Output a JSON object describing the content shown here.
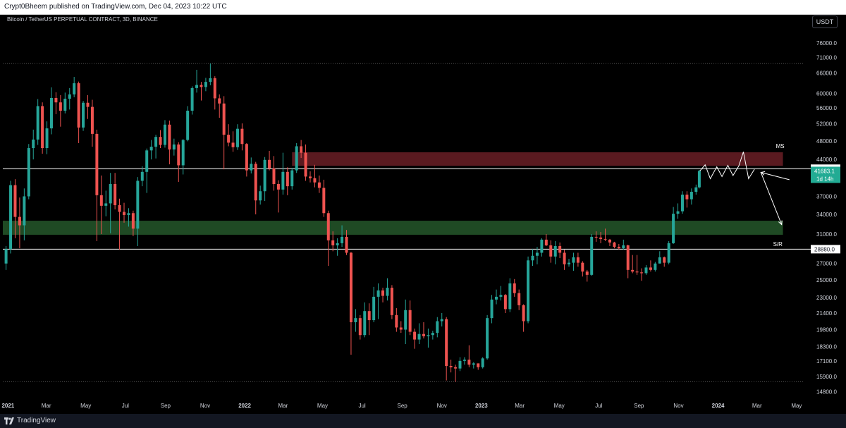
{
  "header": {
    "publisher_text": "Crypt0Bheem published on TradingView.com, Dec 04, 2023 10:22 UTC"
  },
  "chart_title": "Bitcoin / TetherUS PERPETUAL CONTRACT, 3D, BINANCE",
  "currency_button": "USDT",
  "footer": {
    "logo_text": "TradingView"
  },
  "colors": {
    "background": "#000000",
    "up_candle": "#26a69a",
    "down_candle": "#ef5350",
    "resistance_zone": "#5a1a20",
    "support_zone": "#1f4a24",
    "price_label_bg": "#22ab94",
    "level_line": "#ffffff",
    "axis_text": "#d1d4dc"
  },
  "chart_data": {
    "type": "candlestick",
    "title": "Bitcoin / TetherUS PERPETUAL CONTRACT, 3D, BINANCE",
    "y_scale": "log",
    "y_ticks": [
      76000.0,
      71000.0,
      66000.0,
      60000.0,
      56000.0,
      52000.0,
      48000.0,
      44000.0,
      37000.0,
      34000.0,
      31000.0,
      27000.0,
      25000.0,
      23000.0,
      21400.0,
      19800.0,
      18300.0,
      17100.0,
      15900.0,
      14800.0
    ],
    "x_ticks": [
      "2021",
      "Mar",
      "May",
      "Jul",
      "Sep",
      "Nov",
      "2022",
      "Mar",
      "May",
      "Jul",
      "Sep",
      "Nov",
      "2023",
      "Mar",
      "May",
      "Jul",
      "Sep",
      "Nov",
      "2024",
      "Mar",
      "May"
    ],
    "x_tick_dates": [
      "2021-01-01",
      "2021-03-01",
      "2021-05-01",
      "2021-07-01",
      "2021-09-01",
      "2021-11-01",
      "2022-01-01",
      "2022-03-01",
      "2022-05-01",
      "2022-07-01",
      "2022-09-01",
      "2022-11-01",
      "2023-01-01",
      "2023-03-01",
      "2023-05-01",
      "2023-07-01",
      "2023-09-01",
      "2023-11-01",
      "2024-01-01",
      "2024-03-01",
      "2024-05-01"
    ],
    "x_range": [
      "2020-12-24",
      "2024-05-12"
    ],
    "y_range": [
      14200,
      87000
    ],
    "dotted_levels": [
      69000,
      15500
    ],
    "horizontal_levels": [
      {
        "value": 42125.0,
        "label": "42125.0"
      },
      {
        "value": 28880.0,
        "label": "28880.0"
      }
    ],
    "current_price": {
      "value": 41683.1,
      "label": "41683.1",
      "countdown": "1d 14h"
    },
    "zones": [
      {
        "name": "MS",
        "start": "2022-03-15",
        "end": "2024-04-10",
        "top": 45500,
        "bottom": 42700,
        "label": "MS"
      },
      {
        "name": "S/R",
        "start": "2020-12-24",
        "end": "2024-04-10",
        "top": 33000,
        "bottom": 30900,
        "label": "S/R"
      }
    ],
    "projection_zigzag": [
      [
        "2023-12-04",
        41700
      ],
      [
        "2023-12-12",
        42900
      ],
      [
        "2023-12-20",
        40200
      ],
      [
        "2023-12-30",
        42500
      ],
      [
        "2024-01-07",
        40600
      ],
      [
        "2024-01-16",
        42800
      ],
      [
        "2024-01-24",
        40800
      ],
      [
        "2024-02-02",
        42700
      ],
      [
        "2024-02-09",
        45600
      ],
      [
        "2024-02-17",
        40200
      ],
      [
        "2024-02-26",
        42000
      ]
    ],
    "projection_arrows": [
      {
        "from": [
          "2024-04-20",
          40000
        ],
        "to": [
          "2024-03-07",
          41400
        ]
      },
      {
        "from": [
          "2024-03-07",
          41400
        ],
        "to": [
          "2024-04-08",
          32400
        ]
      }
    ],
    "candles": [
      [
        "2020-12-29",
        27000,
        29300,
        26200,
        28900
      ],
      [
        "2021-01-05",
        28900,
        39800,
        28300,
        39000
      ],
      [
        "2021-01-12",
        39000,
        40100,
        30400,
        33600
      ],
      [
        "2021-01-19",
        33600,
        36800,
        29000,
        32300
      ],
      [
        "2021-01-26",
        32300,
        38400,
        30100,
        37000
      ],
      [
        "2021-02-02",
        37000,
        47300,
        36500,
        46400
      ],
      [
        "2021-02-09",
        46400,
        50600,
        44000,
        48300
      ],
      [
        "2021-02-16",
        48300,
        58400,
        47100,
        56500
      ],
      [
        "2021-02-23",
        56500,
        57500,
        45200,
        46400
      ],
      [
        "2021-03-02",
        46400,
        52600,
        45100,
        50900
      ],
      [
        "2021-03-09",
        50900,
        61700,
        49500,
        58700
      ],
      [
        "2021-03-16",
        58700,
        60300,
        54400,
        57500
      ],
      [
        "2021-03-23",
        57500,
        59500,
        51300,
        55300
      ],
      [
        "2021-03-30",
        55300,
        60200,
        54600,
        58500
      ],
      [
        "2021-04-06",
        58500,
        61500,
        55600,
        59700
      ],
      [
        "2021-04-13",
        59700,
        64800,
        58900,
        62900
      ],
      [
        "2021-04-20",
        62900,
        63400,
        47500,
        51100
      ],
      [
        "2021-04-27",
        51100,
        57900,
        50300,
        57400
      ],
      [
        "2021-05-04",
        57400,
        59500,
        53200,
        56300
      ],
      [
        "2021-05-11",
        56300,
        58200,
        46700,
        49600
      ],
      [
        "2021-05-18",
        49600,
        50600,
        30000,
        37200
      ],
      [
        "2021-05-25",
        37200,
        40800,
        31000,
        35400
      ],
      [
        "2021-06-01",
        35400,
        38000,
        33700,
        35800
      ],
      [
        "2021-06-08",
        35800,
        41300,
        31100,
        39200
      ],
      [
        "2021-06-15",
        39200,
        41300,
        34800,
        35500
      ],
      [
        "2021-06-22",
        35500,
        36600,
        28800,
        34400
      ],
      [
        "2021-06-29",
        34400,
        35900,
        32700,
        33900
      ],
      [
        "2021-07-06",
        33900,
        35000,
        32100,
        34200
      ],
      [
        "2021-07-13",
        34200,
        34600,
        30700,
        31800
      ],
      [
        "2021-07-20",
        31800,
        40500,
        29300,
        39800
      ],
      [
        "2021-07-27",
        39800,
        42600,
        38800,
        41500
      ],
      [
        "2021-08-03",
        41500,
        46300,
        37600,
        45900
      ],
      [
        "2021-08-10",
        45900,
        48200,
        44000,
        46700
      ],
      [
        "2021-08-17",
        46700,
        49400,
        44200,
        48900
      ],
      [
        "2021-08-24",
        48900,
        50500,
        46400,
        47100
      ],
      [
        "2021-08-31",
        47100,
        52900,
        46500,
        51800
      ],
      [
        "2021-09-07",
        51800,
        52800,
        43000,
        46100
      ],
      [
        "2021-09-14",
        46100,
        48500,
        44800,
        47200
      ],
      [
        "2021-09-21",
        47200,
        47700,
        39600,
        42800
      ],
      [
        "2021-09-28",
        42800,
        48400,
        41000,
        48200
      ],
      [
        "2021-10-05",
        48200,
        56500,
        47900,
        55300
      ],
      [
        "2021-10-12",
        55300,
        62000,
        54300,
        61500
      ],
      [
        "2021-10-19",
        61500,
        67000,
        60200,
        62400
      ],
      [
        "2021-10-26",
        62400,
        63300,
        58000,
        61800
      ],
      [
        "2021-11-02",
        61800,
        64500,
        60600,
        63300
      ],
      [
        "2021-11-09",
        63300,
        69000,
        62300,
        64400
      ],
      [
        "2021-11-16",
        64400,
        65000,
        55600,
        58600
      ],
      [
        "2021-11-23",
        58600,
        59700,
        53500,
        57200
      ],
      [
        "2021-11-30",
        57200,
        59200,
        42000,
        49400
      ],
      [
        "2021-12-07",
        49400,
        51900,
        46800,
        47600
      ],
      [
        "2021-12-14",
        47600,
        50200,
        45600,
        46600
      ],
      [
        "2021-12-21",
        46600,
        51900,
        46000,
        50800
      ],
      [
        "2021-12-28",
        50800,
        52100,
        45900,
        47300
      ],
      [
        "2022-01-04",
        47300,
        47500,
        40600,
        41800
      ],
      [
        "2022-01-11",
        41800,
        44400,
        41200,
        43100
      ],
      [
        "2022-01-18",
        43100,
        43500,
        34000,
        36300
      ],
      [
        "2022-01-25",
        36300,
        38900,
        35600,
        37900
      ],
      [
        "2022-02-01",
        37900,
        44500,
        36200,
        43900
      ],
      [
        "2022-02-08",
        43900,
        45800,
        41800,
        42200
      ],
      [
        "2022-02-15",
        42200,
        44700,
        38000,
        39200
      ],
      [
        "2022-02-22",
        39200,
        39900,
        34300,
        38200
      ],
      [
        "2022-03-01",
        38200,
        45400,
        37300,
        41500
      ],
      [
        "2022-03-08",
        41500,
        42400,
        37200,
        38800
      ],
      [
        "2022-03-15",
        38800,
        42300,
        38200,
        41800
      ],
      [
        "2022-03-22",
        41800,
        47500,
        41300,
        46800
      ],
      [
        "2022-03-29",
        46800,
        48200,
        44300,
        45400
      ],
      [
        "2022-04-05",
        45400,
        47200,
        39800,
        40600
      ],
      [
        "2022-04-12",
        40600,
        41600,
        39500,
        40300
      ],
      [
        "2022-04-19",
        40300,
        42900,
        38600,
        39500
      ],
      [
        "2022-04-26",
        39500,
        40800,
        37600,
        38500
      ],
      [
        "2022-05-03",
        38500,
        40000,
        33600,
        34200
      ],
      [
        "2022-05-10",
        34200,
        34600,
        26700,
        30100
      ],
      [
        "2022-05-17",
        30100,
        31400,
        28600,
        29400
      ],
      [
        "2022-05-24",
        29400,
        30400,
        28000,
        29700
      ],
      [
        "2022-05-31",
        29700,
        32300,
        29200,
        30600
      ],
      [
        "2022-06-07",
        30600,
        31600,
        28100,
        28400
      ],
      [
        "2022-06-14",
        28400,
        28500,
        17600,
        20500
      ],
      [
        "2022-06-21",
        20500,
        21800,
        19600,
        20900
      ],
      [
        "2022-06-28",
        20900,
        21200,
        18900,
        19300
      ],
      [
        "2022-07-05",
        19300,
        22500,
        19100,
        21600
      ],
      [
        "2022-07-12",
        21600,
        22400,
        19300,
        20700
      ],
      [
        "2022-07-19",
        20700,
        24200,
        20500,
        23100
      ],
      [
        "2022-07-26",
        23100,
        24600,
        20800,
        23800
      ],
      [
        "2022-08-02",
        23800,
        24100,
        22500,
        23200
      ],
      [
        "2022-08-09",
        23200,
        25200,
        22700,
        24100
      ],
      [
        "2022-08-16",
        24100,
        24400,
        20800,
        21200
      ],
      [
        "2022-08-23",
        21200,
        21900,
        19600,
        20000
      ],
      [
        "2022-08-30",
        20000,
        20600,
        19500,
        19800
      ],
      [
        "2022-09-06",
        19800,
        22800,
        18500,
        21700
      ],
      [
        "2022-09-13",
        21700,
        22700,
        19300,
        19600
      ],
      [
        "2022-09-20",
        19600,
        19900,
        18100,
        18900
      ],
      [
        "2022-09-27",
        18900,
        20400,
        18500,
        19400
      ],
      [
        "2022-10-04",
        19400,
        20500,
        19000,
        19200
      ],
      [
        "2022-10-11",
        19200,
        19900,
        18200,
        19300
      ],
      [
        "2022-10-18",
        19300,
        19700,
        18900,
        19500
      ],
      [
        "2022-10-25",
        19500,
        21000,
        19100,
        20600
      ],
      [
        "2022-11-01",
        20600,
        21400,
        20100,
        20800
      ],
      [
        "2022-11-08",
        20800,
        21000,
        15600,
        16700
      ],
      [
        "2022-11-15",
        16700,
        17200,
        16200,
        16600
      ],
      [
        "2022-11-22",
        16600,
        16800,
        15500,
        16500
      ],
      [
        "2022-11-29",
        16500,
        17400,
        16300,
        17100
      ],
      [
        "2022-12-06",
        17100,
        17400,
        16800,
        17200
      ],
      [
        "2022-12-13",
        17200,
        18400,
        16600,
        16800
      ],
      [
        "2022-12-20",
        16800,
        17000,
        16500,
        16900
      ],
      [
        "2022-12-27",
        16900,
        16900,
        16400,
        16600
      ],
      [
        "2023-01-03",
        16600,
        17400,
        16500,
        17300
      ],
      [
        "2023-01-10",
        17300,
        21200,
        17200,
        20900
      ],
      [
        "2023-01-17",
        20900,
        23300,
        20400,
        22800
      ],
      [
        "2023-01-24",
        22800,
        23900,
        22300,
        23100
      ],
      [
        "2023-01-31",
        23100,
        24300,
        22700,
        23300
      ],
      [
        "2023-02-07",
        23300,
        23400,
        21400,
        21800
      ],
      [
        "2023-02-14",
        21800,
        25200,
        21500,
        24600
      ],
      [
        "2023-02-21",
        24600,
        25100,
        23100,
        23500
      ],
      [
        "2023-02-28",
        23500,
        23900,
        21700,
        22200
      ],
      [
        "2023-03-07",
        22200,
        22300,
        19600,
        20600
      ],
      [
        "2023-03-14",
        20600,
        27900,
        20400,
        27400
      ],
      [
        "2023-03-21",
        27400,
        28900,
        26700,
        28000
      ],
      [
        "2023-03-28",
        28000,
        29200,
        26900,
        28400
      ],
      [
        "2023-04-04",
        28400,
        30400,
        27900,
        30200
      ],
      [
        "2023-04-11",
        30200,
        31000,
        29300,
        29400
      ],
      [
        "2023-04-18",
        29400,
        30100,
        27100,
        27900
      ],
      [
        "2023-04-25",
        27900,
        30000,
        26900,
        29300
      ],
      [
        "2023-05-02",
        29300,
        29800,
        27700,
        28400
      ],
      [
        "2023-05-09",
        28400,
        28800,
        26200,
        26900
      ],
      [
        "2023-05-16",
        26900,
        27600,
        26600,
        27100
      ],
      [
        "2023-05-23",
        27100,
        28400,
        26100,
        27800
      ],
      [
        "2023-05-30",
        27800,
        28400,
        26600,
        27100
      ],
      [
        "2023-06-06",
        27100,
        27300,
        25400,
        26000
      ],
      [
        "2023-06-13",
        26000,
        26200,
        24800,
        25600
      ],
      [
        "2023-06-20",
        25600,
        31000,
        25500,
        30600
      ],
      [
        "2023-06-27",
        30600,
        31400,
        29900,
        30500
      ],
      [
        "2023-07-04",
        30500,
        31300,
        29700,
        30300
      ],
      [
        "2023-07-11",
        30300,
        31800,
        30000,
        30200
      ],
      [
        "2023-07-18",
        30200,
        30300,
        29300,
        29800
      ],
      [
        "2023-07-25",
        29800,
        29900,
        29000,
        29200
      ],
      [
        "2023-08-01",
        29200,
        29600,
        28800,
        29000
      ],
      [
        "2023-08-08",
        29000,
        30200,
        28800,
        29400
      ],
      [
        "2023-08-15",
        29400,
        29500,
        25200,
        26200
      ],
      [
        "2023-08-22",
        26200,
        28100,
        25800,
        26000
      ],
      [
        "2023-08-29",
        26000,
        28100,
        25600,
        25900
      ],
      [
        "2023-09-05",
        25900,
        26400,
        24900,
        25800
      ],
      [
        "2023-09-12",
        25800,
        26800,
        25600,
        26500
      ],
      [
        "2023-09-19",
        26500,
        27400,
        26000,
        26200
      ],
      [
        "2023-09-26",
        26200,
        27200,
        26000,
        27000
      ],
      [
        "2023-10-03",
        27000,
        28600,
        27000,
        27800
      ],
      [
        "2023-10-10",
        27800,
        27900,
        26600,
        27100
      ],
      [
        "2023-10-17",
        27100,
        30000,
        26900,
        29700
      ],
      [
        "2023-10-24",
        29700,
        35200,
        29600,
        34100
      ],
      [
        "2023-10-31",
        34100,
        35800,
        33300,
        34500
      ],
      [
        "2023-11-07",
        34500,
        37900,
        34100,
        37300
      ],
      [
        "2023-11-14",
        37300,
        37900,
        35100,
        36500
      ],
      [
        "2023-11-21",
        36500,
        38400,
        35600,
        37800
      ],
      [
        "2023-11-28",
        37800,
        39100,
        37300,
        38600
      ],
      [
        "2023-12-03",
        38600,
        41900,
        38400,
        41683
      ]
    ]
  }
}
